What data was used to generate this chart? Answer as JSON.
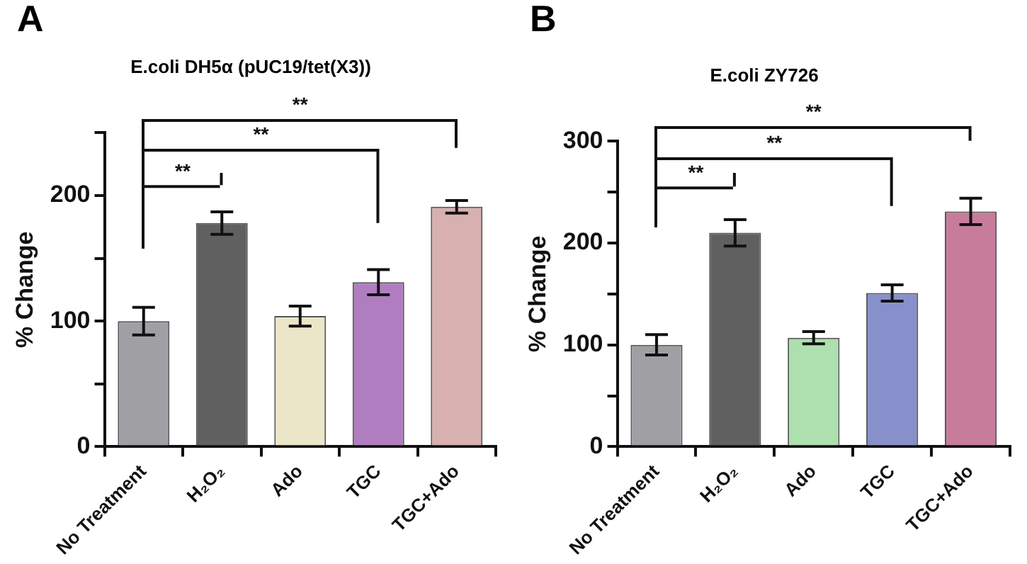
{
  "chart_data": [
    {
      "type": "bar",
      "title": "E.coli DH5α (pUC19/tet(X3))",
      "ylabel": "% Change",
      "categories": [
        "No Treatment",
        "H₂O₂",
        "Ado",
        "TGC",
        "TGC+Ado"
      ],
      "values": [
        100,
        178,
        104,
        131,
        191
      ],
      "errors": [
        11,
        9,
        8,
        10,
        5
      ],
      "colors": [
        "#a0a0a4",
        "#606060",
        "#ece6c8",
        "#b07ec0",
        "#d8b0b0"
      ],
      "ylim": [
        0,
        250
      ],
      "yticks": [
        0,
        {
          "value": 50,
          "label": null
        },
        100,
        {
          "value": 150,
          "label": null
        },
        200,
        {
          "value": 250,
          "label": null
        }
      ],
      "grid": false,
      "annotations": [
        "A",
        "**",
        "**",
        "**"
      ]
    },
    {
      "type": "bar",
      "title": "E.coli ZY726",
      "ylabel": "% Change",
      "categories": [
        "No Treatment",
        "H₂O₂",
        "Ado",
        "TGC",
        "TGC+Ado"
      ],
      "values": [
        100,
        210,
        107,
        151,
        231
      ],
      "errors": [
        10,
        13,
        6,
        8,
        13
      ],
      "colors": [
        "#a0a0a4",
        "#606060",
        "#aedfae",
        "#8890cc",
        "#c87c9c"
      ],
      "ylim": [
        0,
        300
      ],
      "yticks": [
        0,
        {
          "value": 50,
          "label": null
        },
        100,
        {
          "value": 150,
          "label": null
        },
        200,
        {
          "value": 250,
          "label": null
        },
        300
      ],
      "grid": false,
      "annotations": [
        "B",
        "**",
        "**",
        "**"
      ]
    }
  ]
}
